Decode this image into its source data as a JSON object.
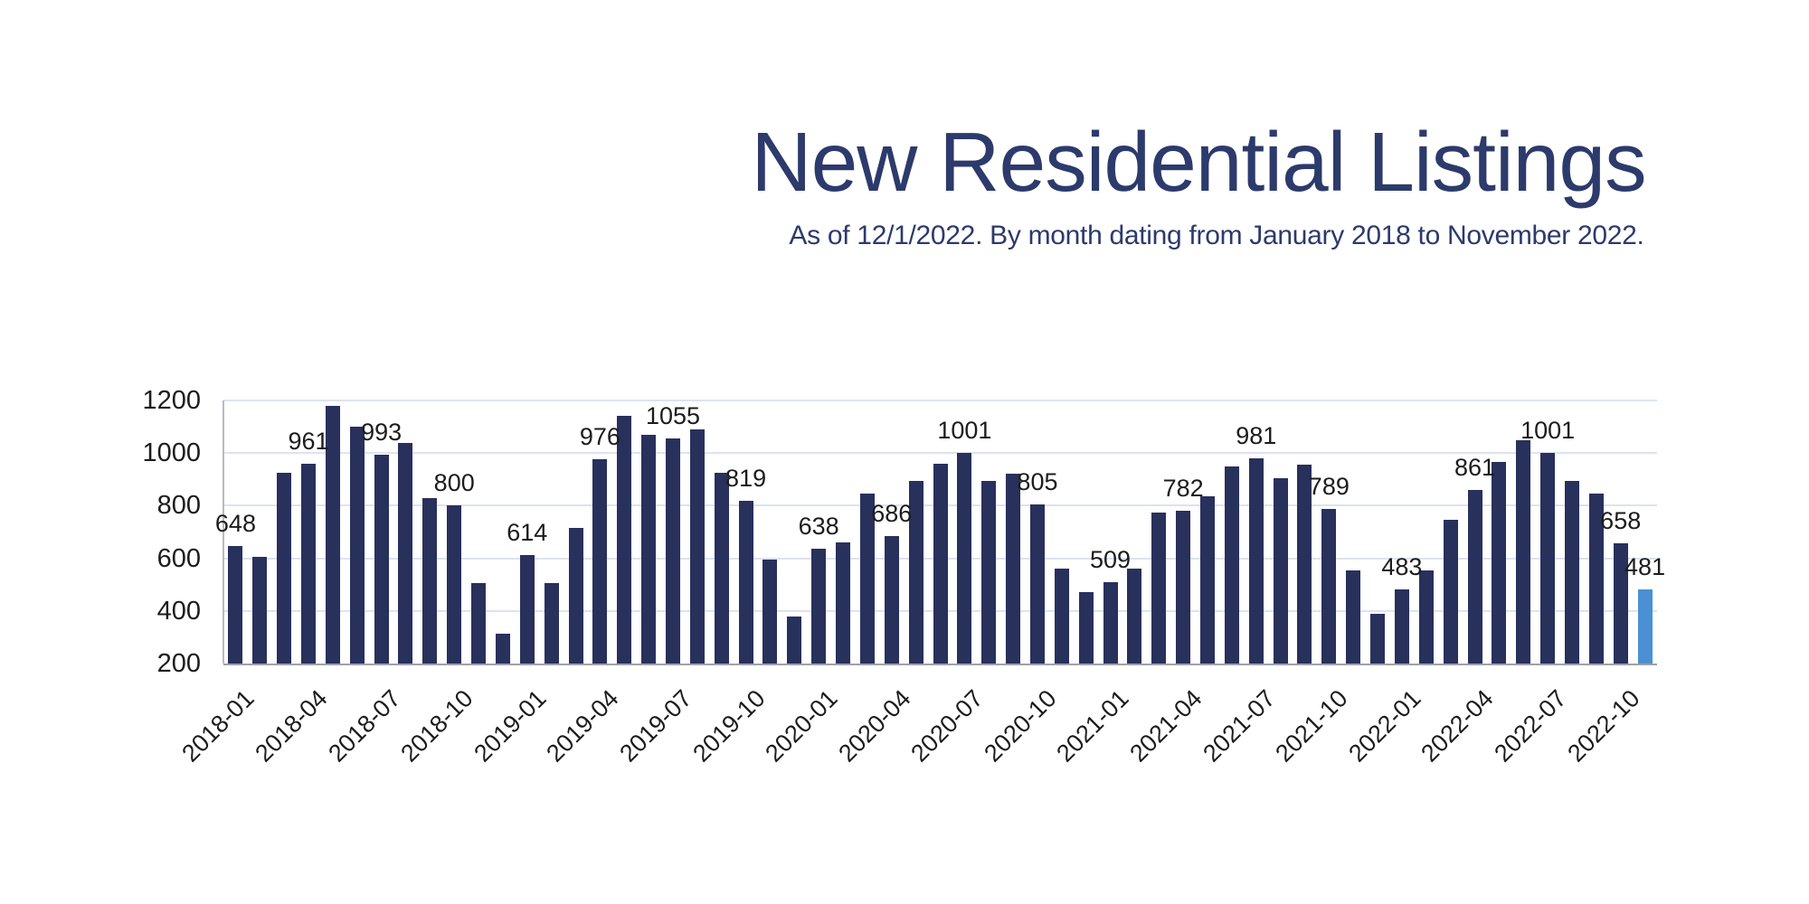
{
  "header": {
    "title": "New Residential Listings",
    "subtitle": "As of 12/1/2022. By month dating from January 2018 to November 2022."
  },
  "colors": {
    "title_text": "#2C3A6C",
    "bar": "#28305C",
    "highlight_bar": "#4A90D3",
    "gridline": "#DCE3F1",
    "vertical_axis": "#B7BBC3",
    "baseline_axis": "#9EA1A7",
    "tick_text": "#1C1C1C"
  },
  "chart_data": {
    "type": "bar",
    "title": "New Residential Listings",
    "subtitle": "As of 12/1/2022. By month dating from January 2018 to November 2022.",
    "xlabel": "",
    "ylabel": "",
    "ylim": [
      200,
      1200
    ],
    "yticks": [
      200,
      400,
      600,
      800,
      1000,
      1200
    ],
    "grid": true,
    "legend": false,
    "categories": [
      "2018-01",
      "2018-02",
      "2018-03",
      "2018-04",
      "2018-05",
      "2018-06",
      "2018-07",
      "2018-08",
      "2018-09",
      "2018-10",
      "2018-11",
      "2018-12",
      "2019-01",
      "2019-02",
      "2019-03",
      "2019-04",
      "2019-05",
      "2019-06",
      "2019-07",
      "2019-08",
      "2019-09",
      "2019-10",
      "2019-11",
      "2019-12",
      "2020-01",
      "2020-02",
      "2020-03",
      "2020-04",
      "2020-05",
      "2020-06",
      "2020-07",
      "2020-08",
      "2020-09",
      "2020-10",
      "2020-11",
      "2020-12",
      "2021-01",
      "2021-02",
      "2021-03",
      "2021-04",
      "2021-05",
      "2021-06",
      "2021-07",
      "2021-08",
      "2021-09",
      "2021-10",
      "2021-11",
      "2021-12",
      "2022-01",
      "2022-02",
      "2022-03",
      "2022-04",
      "2022-05",
      "2022-06",
      "2022-07",
      "2022-08",
      "2022-09",
      "2022-10",
      "2022-11"
    ],
    "values": [
      648,
      605,
      925,
      961,
      1180,
      1100,
      993,
      1040,
      830,
      800,
      505,
      315,
      614,
      505,
      715,
      976,
      1143,
      1070,
      1055,
      1090,
      925,
      819,
      595,
      380,
      638,
      660,
      845,
      686,
      895,
      960,
      1001,
      895,
      920,
      805,
      560,
      470,
      509,
      560,
      775,
      782,
      835,
      950,
      981,
      905,
      955,
      789,
      555,
      390,
      483,
      555,
      745,
      861,
      965,
      1050,
      1001,
      895,
      845,
      658,
      481
    ],
    "data_label_indices": [
      0,
      3,
      6,
      9,
      12,
      15,
      18,
      21,
      24,
      27,
      30,
      33,
      36,
      39,
      42,
      45,
      48,
      51,
      54,
      57,
      58
    ],
    "x_tick_indices": [
      0,
      3,
      6,
      9,
      12,
      15,
      18,
      21,
      24,
      27,
      30,
      33,
      36,
      39,
      42,
      45,
      48,
      51,
      54,
      57
    ],
    "highlight_index": 58,
    "bar_color": "#28305C",
    "highlight_color": "#4A90D3"
  }
}
